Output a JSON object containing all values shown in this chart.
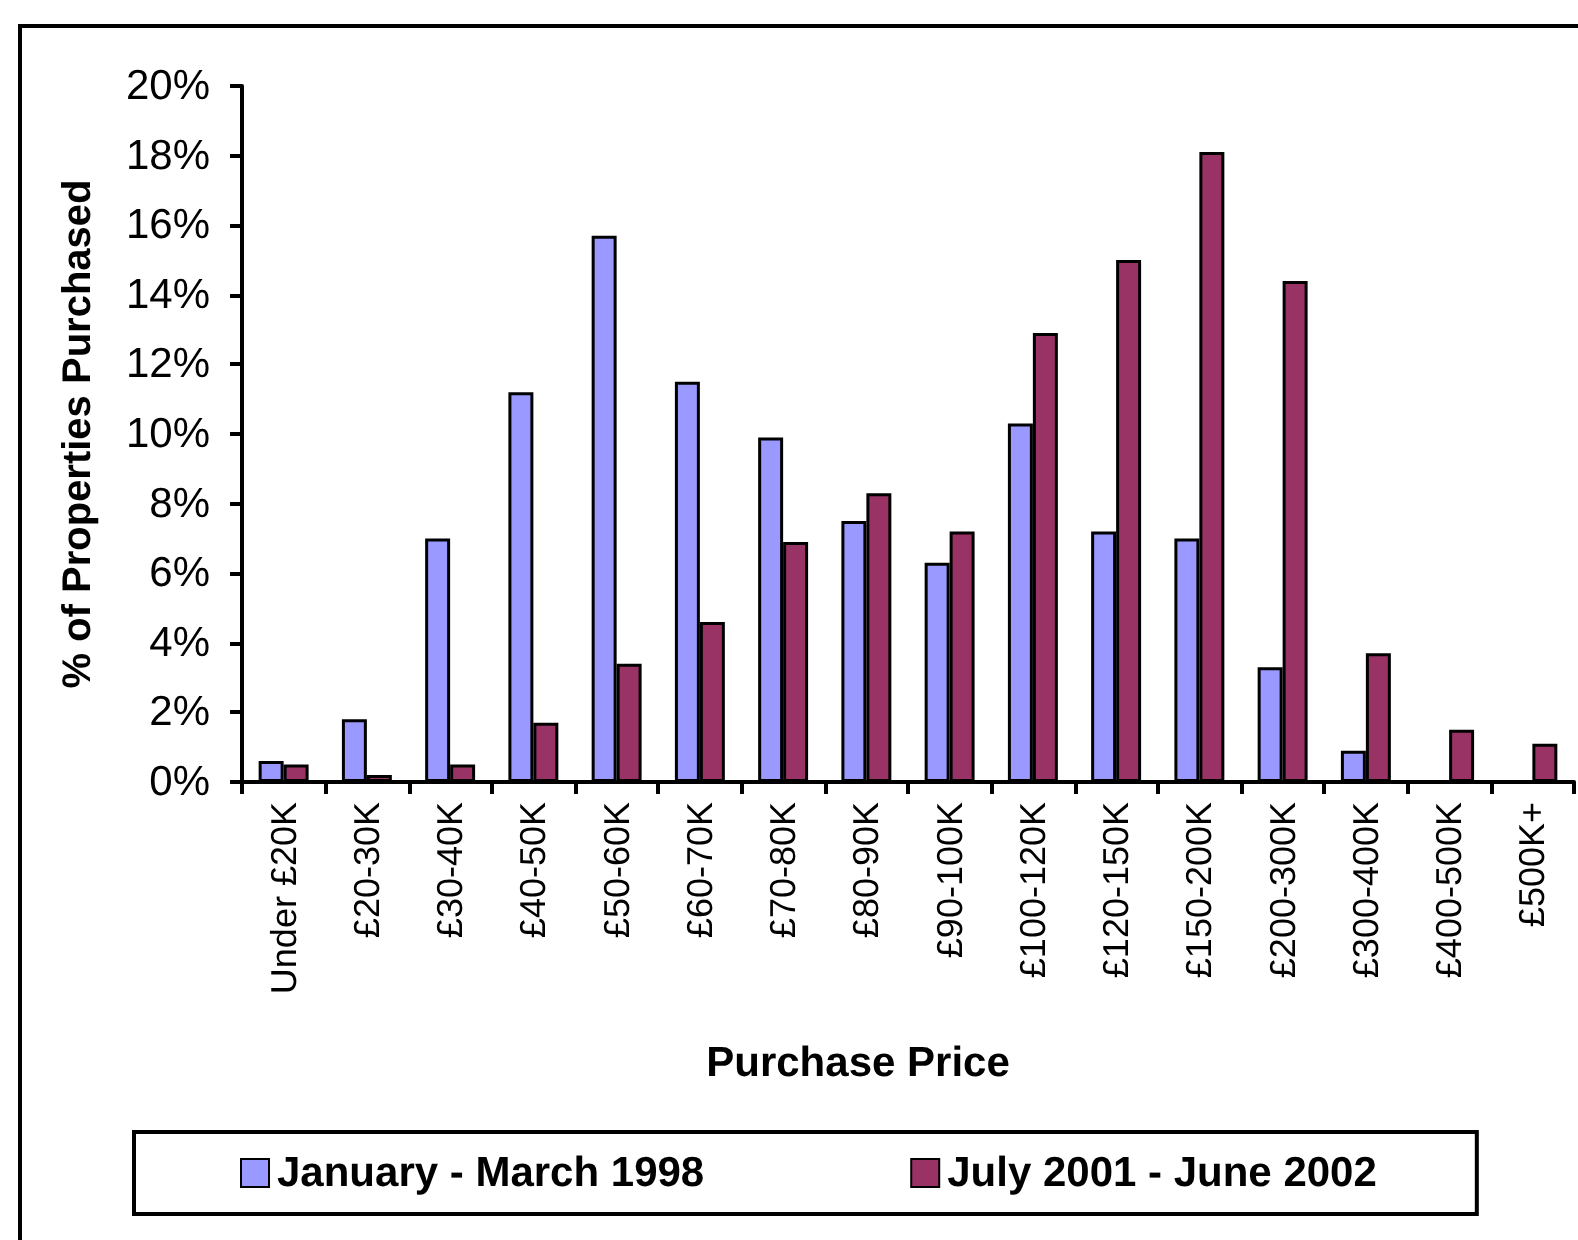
{
  "chart_data": {
    "type": "bar",
    "ylabel": "% of Properties Purchased",
    "xlabel": "Purchase Price",
    "categories": [
      "Under £20K",
      "£20-30K",
      "£30-40K",
      "£40-50K",
      "£50-60K",
      "£60-70K",
      "£70-80K",
      "£80-90K",
      "£90-100K",
      "£100-120K",
      "£120-150K",
      "£150-200K",
      "£200-300K",
      "£300-400K",
      "£400-500K",
      "£500K+"
    ],
    "series": [
      {
        "name": "January - March 1998",
        "color": "#9999ff",
        "values": [
          0.6,
          1.8,
          7.0,
          11.2,
          15.7,
          11.5,
          9.9,
          7.5,
          6.3,
          10.3,
          7.2,
          7.0,
          3.3,
          0.9,
          null,
          null
        ]
      },
      {
        "name": "July 2001 - June 2002",
        "color": "#993366",
        "values": [
          0.5,
          0.2,
          0.5,
          1.7,
          3.4,
          4.6,
          6.9,
          8.3,
          7.2,
          12.9,
          15.0,
          18.1,
          14.4,
          3.7,
          1.5,
          1.1
        ]
      }
    ],
    "ylim": [
      0,
      20
    ],
    "yticks": [
      {
        "value": 0,
        "label": "0%"
      },
      {
        "value": 2,
        "label": "2%"
      },
      {
        "value": 4,
        "label": "4%"
      },
      {
        "value": 6,
        "label": "6%"
      },
      {
        "value": 8,
        "label": "8%"
      },
      {
        "value": 10,
        "label": "10%"
      },
      {
        "value": 12,
        "label": "12%"
      },
      {
        "value": 14,
        "label": "14%"
      },
      {
        "value": 16,
        "label": "16%"
      },
      {
        "value": 18,
        "label": "18%"
      },
      {
        "value": 20,
        "label": "20%"
      }
    ],
    "grid": false,
    "legend": "bottom"
  }
}
